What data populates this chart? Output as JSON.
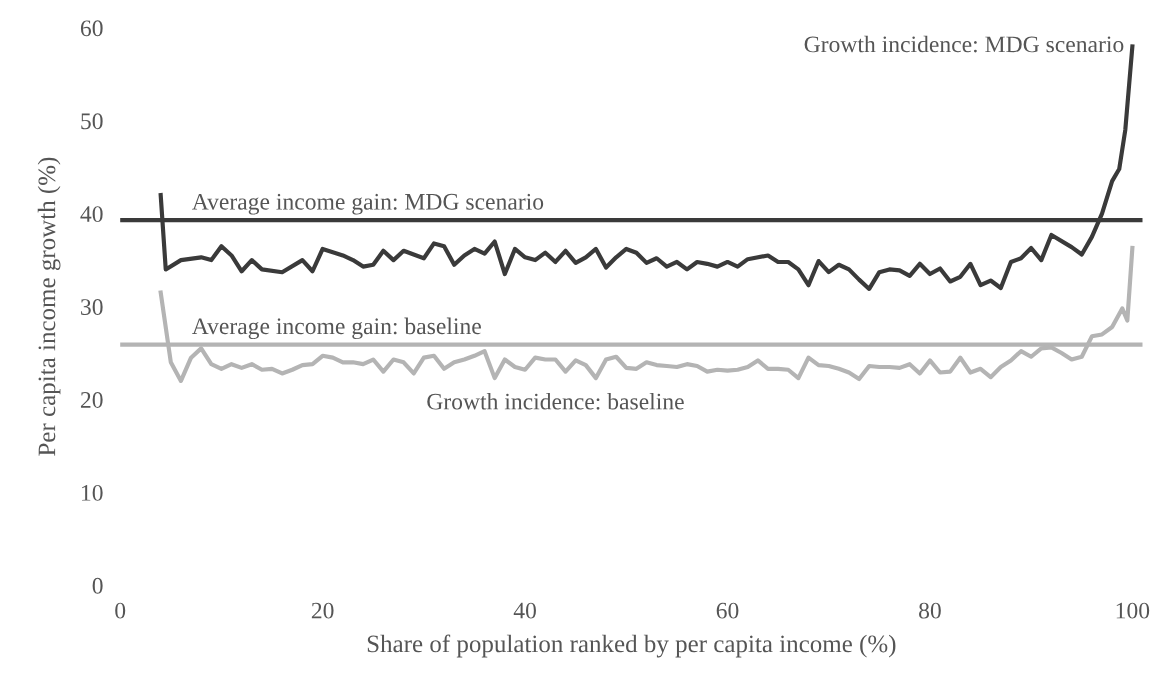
{
  "chart_data": {
    "type": "line",
    "xlabel": "Share of population ranked by per capita income (%)",
    "ylabel": "Per capita income growth (%)",
    "xlim": [
      0,
      101
    ],
    "xticks": [
      0,
      20,
      40,
      60,
      80,
      100
    ],
    "ylim": [
      0,
      60
    ],
    "yticks": [
      0,
      10,
      20,
      30,
      40,
      50,
      60
    ],
    "grid": false,
    "legend": false,
    "marker": "none",
    "line_style": "solid",
    "series": [
      {
        "name": "Growth incidence: MDG scenario",
        "color": "#3a3a3a",
        "x": [
          4,
          4.5,
          6,
          8,
          9,
          10,
          11,
          12,
          13,
          14,
          16,
          18,
          19,
          20,
          22,
          23,
          24,
          25,
          26,
          27,
          28,
          30,
          31,
          32,
          33,
          34,
          35,
          36,
          37,
          38,
          39,
          40,
          41,
          42,
          43,
          44,
          45,
          46,
          47,
          48,
          49,
          50,
          51,
          52,
          53,
          54,
          55,
          56,
          57,
          58,
          59,
          60,
          61,
          62,
          64,
          65,
          66,
          67,
          68,
          69,
          70,
          71,
          72,
          73,
          74,
          75,
          76,
          77,
          78,
          79,
          80,
          81,
          82,
          83,
          84,
          85,
          86,
          87,
          88,
          89,
          90,
          91,
          92,
          94,
          95,
          96,
          97,
          98,
          98.7,
          99.3,
          100
        ],
        "values": [
          42,
          34,
          35,
          35.3,
          35,
          36.5,
          35.5,
          33.8,
          35,
          34,
          33.7,
          35,
          33.8,
          36.2,
          35.5,
          35,
          34.3,
          34.5,
          36,
          35,
          36,
          35.2,
          36.8,
          36.5,
          34.5,
          35.5,
          36.2,
          35.7,
          37,
          33.5,
          36.2,
          35.3,
          35,
          35.8,
          34.8,
          36,
          34.7,
          35.3,
          36.2,
          34.2,
          35.3,
          36.2,
          35.8,
          34.7,
          35.2,
          34.3,
          34.8,
          34,
          34.8,
          34.6,
          34.3,
          34.8,
          34.3,
          35.1,
          35.5,
          34.8,
          34.8,
          34,
          32.3,
          34.9,
          33.7,
          34.5,
          34,
          32.9,
          31.9,
          33.7,
          34,
          33.9,
          33.3,
          34.6,
          33.5,
          34.1,
          32.7,
          33.2,
          34.6,
          32.3,
          32.8,
          32,
          34.8,
          35.2,
          36.3,
          35,
          37.7,
          36.4,
          35.6,
          37.5,
          40,
          43.5,
          44.8,
          49,
          58
        ]
      },
      {
        "name": "Growth incidence: baseline",
        "color": "#b4b4b4",
        "x": [
          4,
          5,
          6,
          7,
          8,
          9,
          10,
          11,
          12,
          13,
          14,
          15,
          16,
          17,
          18,
          19,
          20,
          21,
          22,
          23,
          24,
          25,
          26,
          27,
          28,
          29,
          30,
          31,
          32,
          33,
          34,
          35,
          36,
          37,
          38,
          39,
          40,
          41,
          42,
          43,
          44,
          45,
          46,
          47,
          48,
          49,
          50,
          51,
          52,
          53,
          54,
          55,
          56,
          57,
          58,
          59,
          60,
          61,
          62,
          63,
          64,
          65,
          66,
          67,
          68,
          69,
          70,
          71,
          72,
          73,
          74,
          75,
          76,
          77,
          78,
          79,
          80,
          81,
          82,
          83,
          84,
          85,
          86,
          87,
          88,
          89,
          90,
          91,
          92,
          93,
          94,
          95,
          96,
          97,
          98,
          99,
          99.5,
          100
        ],
        "values": [
          31.5,
          24,
          22,
          24.5,
          25.5,
          23.8,
          23.3,
          23.8,
          23.4,
          23.8,
          23.2,
          23.3,
          22.8,
          23.2,
          23.7,
          23.8,
          24.7,
          24.5,
          24,
          24,
          23.8,
          24.3,
          23,
          24.3,
          24,
          22.8,
          24.5,
          24.7,
          23.3,
          24,
          24.3,
          24.7,
          25.2,
          22.3,
          24.3,
          23.5,
          23.2,
          24.5,
          24.3,
          24.3,
          23,
          24.2,
          23.7,
          22.3,
          24.3,
          24.6,
          23.4,
          23.3,
          24,
          23.7,
          23.6,
          23.5,
          23.8,
          23.6,
          23,
          23.2,
          23.1,
          23.2,
          23.5,
          24.2,
          23.3,
          23.3,
          23.2,
          22.3,
          24.5,
          23.7,
          23.6,
          23.3,
          22.9,
          22.2,
          23.6,
          23.5,
          23.5,
          23.4,
          23.8,
          22.8,
          24.2,
          22.9,
          23,
          24.5,
          22.9,
          23.3,
          22.4,
          23.5,
          24.2,
          25.2,
          24.6,
          25.5,
          25.6,
          25,
          24.3,
          24.6,
          26.8,
          27,
          27.8,
          29.8,
          28.5,
          36.3
        ]
      }
    ],
    "ref_lines": [
      {
        "axis": "y",
        "value": 39.3,
        "label": "Average income gain: MDG scenario",
        "color": "#3a3a3a"
      },
      {
        "axis": "y",
        "value": 25.9,
        "label": "Average income gain: baseline",
        "color": "#b4b4b4"
      }
    ]
  }
}
